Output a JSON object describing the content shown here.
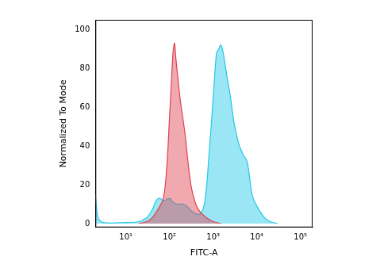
{
  "chart_data": {
    "type": "area",
    "xlabel": "FITC-A",
    "ylabel": "Normalized To Mode",
    "log": "x",
    "grid": false,
    "xlim": [
      2,
      190000
    ],
    "ylim": [
      -2,
      105
    ],
    "xticks": [
      {
        "value": 10,
        "label": "10¹"
      },
      {
        "value": 100,
        "label": "10²"
      },
      {
        "value": 1000,
        "label": "10³"
      },
      {
        "value": 10000,
        "label": "10⁴"
      },
      {
        "value": 100000,
        "label": "10⁵"
      }
    ],
    "yticks": [
      0,
      20,
      40,
      60,
      80,
      100
    ],
    "series": [
      {
        "color": "#e0404f",
        "x": [
          20,
          30,
          40,
          50,
          60,
          70,
          80,
          90,
          100,
          110,
          120,
          130,
          140,
          160,
          180,
          200,
          230,
          270,
          320,
          400,
          500,
          700,
          1000,
          1500
        ],
        "values": [
          0,
          1,
          3,
          6,
          9,
          12,
          20,
          35,
          55,
          72,
          88,
          93,
          85,
          72,
          62,
          55,
          45,
          30,
          18,
          10,
          6,
          3,
          1,
          0
        ]
      },
      {
        "color": "#22c8e6",
        "x": [
          2,
          2.3,
          3,
          10,
          20,
          30,
          40,
          50,
          60,
          70,
          80,
          100,
          120,
          150,
          200,
          250,
          300,
          400,
          500,
          600,
          700,
          800,
          900,
          1000,
          1100,
          1200,
          1350,
          1500,
          1700,
          2000,
          2500,
          3000,
          3500,
          4000,
          5000,
          6000,
          7000,
          8000,
          10000,
          15000,
          20000,
          30000
        ],
        "values": [
          15,
          3,
          0.5,
          0.5,
          1,
          3,
          7,
          12,
          13,
          12,
          12,
          13,
          11,
          10,
          10,
          9,
          7,
          5,
          5,
          8,
          18,
          35,
          50,
          65,
          78,
          88,
          90,
          92,
          88,
          78,
          65,
          52,
          45,
          40,
          35,
          32,
          22,
          14,
          9,
          3,
          1,
          0
        ]
      }
    ]
  }
}
